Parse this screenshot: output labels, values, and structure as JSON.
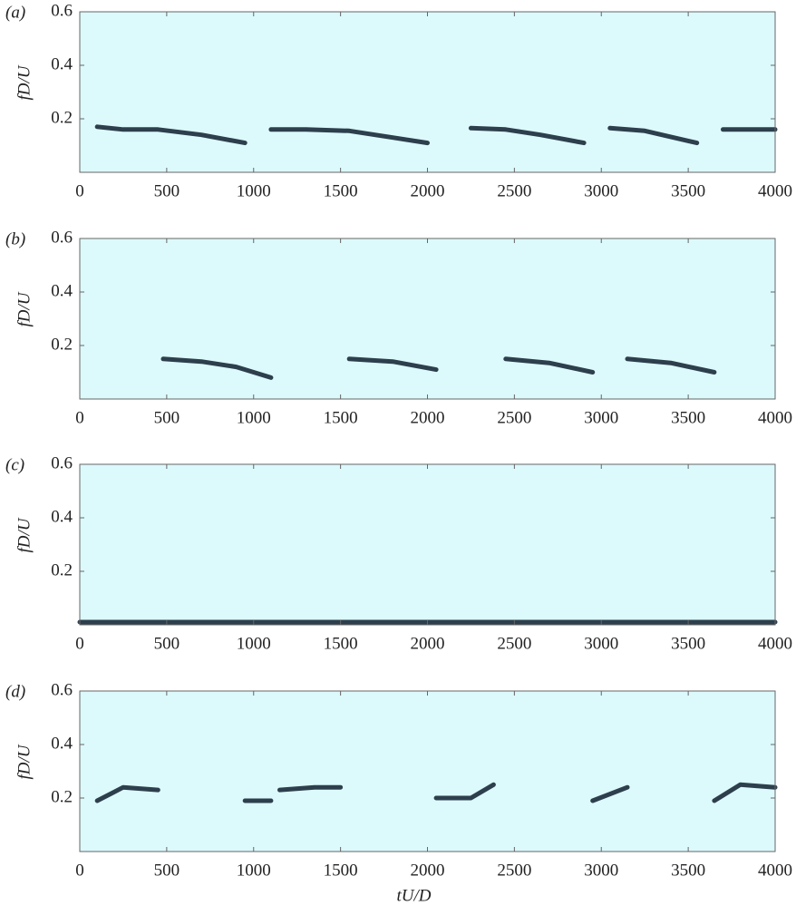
{
  "chart_data": [
    {
      "type": "line",
      "panel_label": "(a)",
      "ylabel": "fD/U",
      "x": [
        100,
        250,
        450,
        700,
        950,
        null,
        1100,
        1300,
        1550,
        1800,
        2000,
        null,
        2250,
        2450,
        2650,
        2900,
        null,
        3050,
        3250,
        3550,
        null,
        3700,
        3850,
        4000
      ],
      "values": [
        0.17,
        0.16,
        0.16,
        0.14,
        0.11,
        null,
        0.16,
        0.16,
        0.155,
        0.13,
        0.11,
        null,
        0.165,
        0.16,
        0.14,
        0.11,
        null,
        0.165,
        0.155,
        0.11,
        null,
        0.16,
        0.16,
        0.16
      ],
      "color": "#1a2a38",
      "background": "#dcf9fc",
      "xlim": [
        0,
        4000
      ],
      "xticks": [
        0,
        500,
        1000,
        1500,
        2000,
        2500,
        3000,
        3500,
        4000
      ],
      "ylim": [
        0,
        0.6
      ],
      "yticks": [
        0.2,
        0.4,
        0.6
      ]
    },
    {
      "type": "line",
      "panel_label": "(b)",
      "ylabel": "fD/U",
      "x": [
        480,
        700,
        900,
        1000,
        1100,
        null,
        1550,
        1800,
        2050,
        null,
        2450,
        2700,
        2950,
        null,
        3150,
        3400,
        3650
      ],
      "values": [
        0.15,
        0.14,
        0.12,
        0.1,
        0.08,
        null,
        0.15,
        0.14,
        0.11,
        null,
        0.15,
        0.135,
        0.1,
        null,
        0.15,
        0.135,
        0.1
      ],
      "color": "#1a2a38",
      "background": "#dcf9fc",
      "xlim": [
        0,
        4000
      ],
      "xticks": [
        0,
        500,
        1000,
        1500,
        2000,
        2500,
        3000,
        3500,
        4000
      ],
      "ylim": [
        0,
        0.6
      ],
      "yticks": [
        0.2,
        0.4,
        0.6
      ]
    },
    {
      "type": "line",
      "panel_label": "(c)",
      "ylabel": "fD/U",
      "x": [
        0,
        1000,
        2000,
        3000,
        4000
      ],
      "values": [
        0.01,
        0.01,
        0.01,
        0.01,
        0.01
      ],
      "color": "#1a2a38",
      "background": "#dcf9fc",
      "xlim": [
        0,
        4000
      ],
      "xticks": [
        0,
        500,
        1000,
        1500,
        2000,
        2500,
        3000,
        3500,
        4000
      ],
      "ylim": [
        0,
        0.6
      ],
      "yticks": [
        0.2,
        0.4,
        0.6
      ]
    },
    {
      "type": "line",
      "panel_label": "(d)",
      "ylabel": "fD/U",
      "xlabel": "tU/D",
      "x": [
        100,
        250,
        450,
        null,
        950,
        1100,
        null,
        1150,
        1350,
        1500,
        null,
        2050,
        2250,
        2380,
        null,
        2950,
        3150,
        null,
        3650,
        3800,
        4000
      ],
      "values": [
        0.19,
        0.24,
        0.23,
        null,
        0.19,
        0.19,
        null,
        0.23,
        0.24,
        0.24,
        null,
        0.2,
        0.2,
        0.25,
        null,
        0.19,
        0.24,
        null,
        0.19,
        0.25,
        0.24
      ],
      "color": "#1a2a38",
      "background": "#dcf9fc",
      "xlim": [
        0,
        4000
      ],
      "xticks": [
        0,
        500,
        1000,
        1500,
        2000,
        2500,
        3000,
        3500,
        4000
      ],
      "ylim": [
        0,
        0.6
      ],
      "yticks": [
        0.2,
        0.4,
        0.6
      ]
    }
  ]
}
